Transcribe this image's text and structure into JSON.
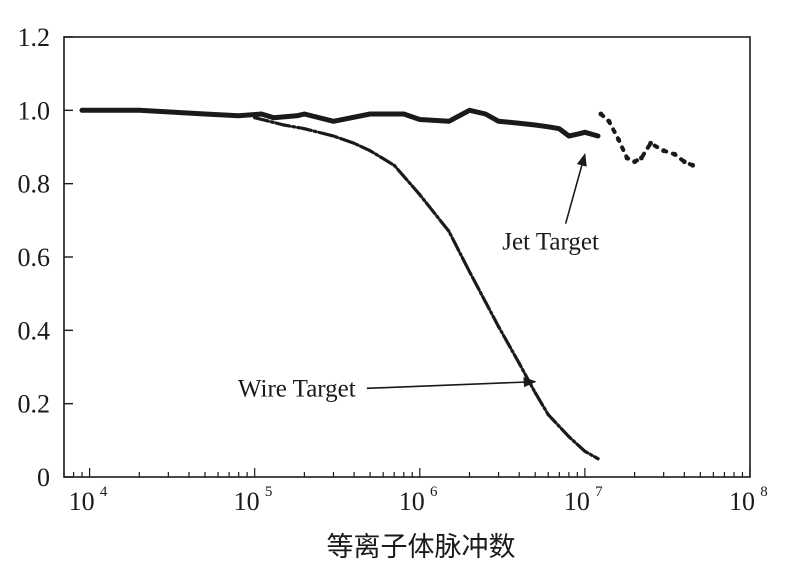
{
  "chart_data": {
    "type": "line",
    "xscale": "log",
    "xlim": [
      7000,
      100000000
    ],
    "ylim": [
      0,
      1.2
    ],
    "xlabel": "等离子体脉冲数",
    "ylabel": "",
    "title": "",
    "grid": false,
    "legend": "none",
    "x_ticks": [
      {
        "value": 10000,
        "base": "10",
        "exp": "4"
      },
      {
        "value": 100000,
        "base": "10",
        "exp": "5"
      },
      {
        "value": 1000000,
        "base": "10",
        "exp": "6"
      },
      {
        "value": 10000000,
        "base": "10",
        "exp": "7"
      },
      {
        "value": 100000000,
        "base": "10",
        "exp": "8"
      }
    ],
    "y_ticks": [
      "0",
      "0.2",
      "0.4",
      "0.6",
      "0.8",
      "1.0",
      "1.2"
    ],
    "y_tick_values": [
      0,
      0.2,
      0.4,
      0.6,
      0.8,
      1.0,
      1.2
    ],
    "series": [
      {
        "color": "#1a1a1a",
        "style": "thick-noisy",
        "x": [
          9000,
          20000,
          50000,
          80000,
          110000,
          130000,
          180000,
          200000,
          300000,
          500000,
          800000,
          1000000,
          1500000,
          2000000,
          2500000,
          3000000,
          4000000,
          5000000,
          6000000,
          7000000,
          8000000,
          9000000,
          10000000,
          12000000
        ],
        "y": [
          1.0,
          1.0,
          0.99,
          0.985,
          0.99,
          0.98,
          0.985,
          0.99,
          0.97,
          0.99,
          0.99,
          0.975,
          0.97,
          1.0,
          0.99,
          0.97,
          0.965,
          0.96,
          0.955,
          0.95,
          0.93,
          0.935,
          0.94,
          0.93
        ]
      },
      {
        "color": "#1a1a1a",
        "style": "dotted",
        "x": [
          12500000,
          14000000,
          16000000,
          18000000,
          20000000,
          22000000,
          25000000,
          30000000,
          35000000,
          40000000,
          45000000
        ],
        "y": [
          0.99,
          0.97,
          0.92,
          0.87,
          0.86,
          0.87,
          0.91,
          0.89,
          0.88,
          0.86,
          0.85
        ]
      },
      {
        "color": "#1a1a1a",
        "style": "dashed",
        "x": [
          100000,
          150000,
          200000,
          300000,
          400000,
          500000,
          700000,
          1000000,
          1500000,
          2000000,
          3000000,
          4000000,
          5000000,
          6000000,
          8000000,
          10000000,
          12000000
        ],
        "y": [
          0.98,
          0.96,
          0.95,
          0.93,
          0.91,
          0.89,
          0.85,
          0.77,
          0.67,
          0.56,
          0.41,
          0.31,
          0.23,
          0.17,
          0.11,
          0.07,
          0.05
        ]
      }
    ],
    "annotations": [
      {
        "text": "Jet Target",
        "x": 6200000,
        "y": 0.62,
        "arrow_to": {
          "x": 10000000,
          "y": 0.88
        }
      },
      {
        "text": "Wire Target",
        "x": 180000,
        "y": 0.22,
        "arrow_to": {
          "x": 5000000,
          "y": 0.26
        }
      }
    ]
  }
}
